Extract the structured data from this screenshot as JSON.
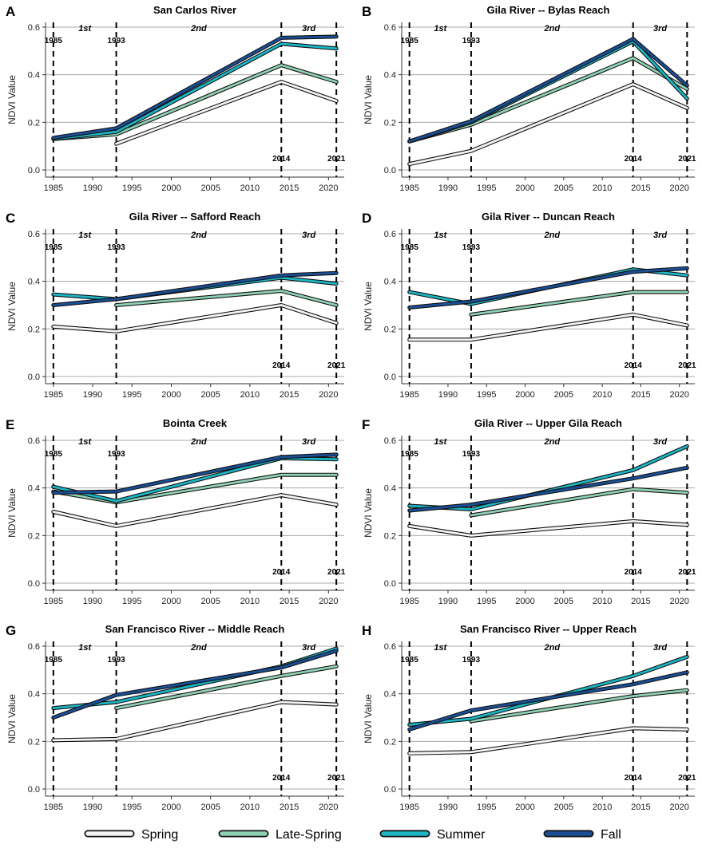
{
  "y_axis_label": "NDVI Value",
  "colors": {
    "Spring": "#f4f4f4",
    "Late-Spring": "#8fd1b4",
    "Summer": "#1cb5c4",
    "Fall": "#1a4f96"
  },
  "legend": [
    "Spring",
    "Late-Spring",
    "Summer",
    "Fall"
  ],
  "chart_data": [
    {
      "panel": "A",
      "title": "San Carlos River",
      "type": "line",
      "x_ticks": [
        1985,
        1990,
        1995,
        2000,
        2005,
        2010,
        2015,
        2020
      ],
      "y_ticks": [
        0.0,
        0.2,
        0.4,
        0.6
      ],
      "xlim": [
        1984,
        2022
      ],
      "ylim": [
        -0.03,
        0.62
      ],
      "markers": {
        "years": [
          1985,
          1993,
          2014,
          2021
        ],
        "top_labels": [
          "1985",
          "1993"
        ],
        "bottom_labels": [
          "2014",
          "2021"
        ],
        "eras": [
          "1st",
          "2nd",
          "3rd"
        ]
      },
      "series": [
        {
          "name": "Spring",
          "x": [
            1993,
            2014,
            2021
          ],
          "y": [
            0.11,
            0.37,
            0.29
          ]
        },
        {
          "name": "Late-Spring",
          "x": [
            1985,
            1993,
            2014,
            2021
          ],
          "y": [
            0.13,
            0.15,
            0.44,
            0.37
          ]
        },
        {
          "name": "Summer",
          "x": [
            1985,
            1993,
            2014,
            2021
          ],
          "y": [
            0.13,
            0.16,
            0.53,
            0.51
          ]
        },
        {
          "name": "Fall",
          "x": [
            1985,
            1993,
            2014,
            2021
          ],
          "y": [
            0.135,
            0.175,
            0.555,
            0.56
          ]
        }
      ]
    },
    {
      "panel": "B",
      "title": "Gila River -- Bylas Reach",
      "type": "line",
      "x_ticks": [
        1985,
        1990,
        1995,
        2000,
        2005,
        2010,
        2015,
        2020
      ],
      "y_ticks": [
        0.0,
        0.2,
        0.4,
        0.6
      ],
      "xlim": [
        1984,
        2022
      ],
      "ylim": [
        -0.03,
        0.62
      ],
      "markers": {
        "years": [
          1985,
          1993,
          2014,
          2021
        ],
        "top_labels": [
          "1985",
          "1993"
        ],
        "bottom_labels": [
          "2014",
          "2021"
        ],
        "eras": [
          "1st",
          "2nd",
          "3rd"
        ]
      },
      "series": [
        {
          "name": "Spring",
          "x": [
            1985,
            1993,
            2014,
            2021
          ],
          "y": [
            0.025,
            0.08,
            0.36,
            0.26
          ]
        },
        {
          "name": "Late-Spring",
          "x": [
            1985,
            1993,
            2014,
            2021
          ],
          "y": [
            0.12,
            0.19,
            0.47,
            0.34
          ]
        },
        {
          "name": "Summer",
          "x": [
            1985,
            1993,
            2014,
            2021
          ],
          "y": [
            0.12,
            0.2,
            0.54,
            0.3
          ]
        },
        {
          "name": "Fall",
          "x": [
            1985,
            1993,
            2014,
            2021
          ],
          "y": [
            0.12,
            0.205,
            0.55,
            0.355
          ]
        }
      ]
    },
    {
      "panel": "C",
      "title": "Gila River -- Safford Reach",
      "type": "line",
      "x_ticks": [
        1985,
        1990,
        1995,
        2000,
        2005,
        2010,
        2015,
        2020
      ],
      "y_ticks": [
        0.0,
        0.2,
        0.4,
        0.6
      ],
      "xlim": [
        1984,
        2022
      ],
      "ylim": [
        -0.03,
        0.62
      ],
      "markers": {
        "years": [
          1985,
          1993,
          2014,
          2021
        ],
        "top_labels": [
          "1985",
          "1993"
        ],
        "bottom_labels": [
          "2014",
          "2021"
        ],
        "eras": [
          "1st",
          "2nd",
          "3rd"
        ]
      },
      "series": [
        {
          "name": "Spring",
          "x": [
            1985,
            1993,
            2014,
            2021
          ],
          "y": [
            0.21,
            0.19,
            0.3,
            0.225
          ]
        },
        {
          "name": "Late-Spring",
          "x": [
            1993,
            2014,
            2021
          ],
          "y": [
            0.3,
            0.36,
            0.3
          ]
        },
        {
          "name": "Summer",
          "x": [
            1985,
            1993,
            2014,
            2021
          ],
          "y": [
            0.345,
            0.325,
            0.415,
            0.39
          ]
        },
        {
          "name": "Fall",
          "x": [
            1985,
            1993,
            2014,
            2021
          ],
          "y": [
            0.3,
            0.325,
            0.425,
            0.435
          ]
        }
      ]
    },
    {
      "panel": "D",
      "title": "Gila River -- Duncan Reach",
      "type": "line",
      "x_ticks": [
        1985,
        1990,
        1995,
        2000,
        2005,
        2010,
        2015,
        2020
      ],
      "y_ticks": [
        0.0,
        0.2,
        0.4,
        0.6
      ],
      "xlim": [
        1984,
        2022
      ],
      "ylim": [
        -0.03,
        0.62
      ],
      "markers": {
        "years": [
          1985,
          1993,
          2014,
          2021
        ],
        "top_labels": [
          "1985",
          "1993"
        ],
        "bottom_labels": [
          "2014",
          "2021"
        ],
        "eras": [
          "1st",
          "2nd",
          "3rd"
        ]
      },
      "series": [
        {
          "name": "Spring",
          "x": [
            1985,
            1993,
            2014,
            2021
          ],
          "y": [
            0.155,
            0.155,
            0.26,
            0.215
          ]
        },
        {
          "name": "Late-Spring",
          "x": [
            1993,
            2014,
            2021
          ],
          "y": [
            0.26,
            0.355,
            0.355
          ]
        },
        {
          "name": "Summer",
          "x": [
            1985,
            1993,
            2014,
            2021
          ],
          "y": [
            0.355,
            0.305,
            0.45,
            0.425
          ]
        },
        {
          "name": "Fall",
          "x": [
            1985,
            1993,
            2014,
            2021
          ],
          "y": [
            0.29,
            0.315,
            0.44,
            0.455
          ]
        }
      ]
    },
    {
      "panel": "E",
      "title": "Bointa Creek",
      "type": "line",
      "x_ticks": [
        1985,
        1990,
        1995,
        2000,
        2005,
        2010,
        2015,
        2020
      ],
      "y_ticks": [
        0.0,
        0.2,
        0.4,
        0.6
      ],
      "xlim": [
        1984,
        2022
      ],
      "ylim": [
        -0.03,
        0.62
      ],
      "markers": {
        "years": [
          1985,
          1993,
          2014,
          2021
        ],
        "top_labels": [
          "1985",
          "1993"
        ],
        "bottom_labels": [
          "2014",
          "2021"
        ],
        "eras": [
          "1st",
          "2nd",
          "3rd"
        ]
      },
      "series": [
        {
          "name": "Spring",
          "x": [
            1985,
            1993,
            2014,
            2021
          ],
          "y": [
            0.3,
            0.24,
            0.37,
            0.33
          ]
        },
        {
          "name": "Late-Spring",
          "x": [
            1985,
            1993,
            2014,
            2021
          ],
          "y": [
            0.385,
            0.34,
            0.455,
            0.455
          ]
        },
        {
          "name": "Summer",
          "x": [
            1985,
            1993,
            2014,
            2021
          ],
          "y": [
            0.405,
            0.345,
            0.525,
            0.52
          ]
        },
        {
          "name": "Fall",
          "x": [
            1985,
            1993,
            2014,
            2021
          ],
          "y": [
            0.38,
            0.385,
            0.53,
            0.54
          ]
        }
      ]
    },
    {
      "panel": "F",
      "title": "Gila River -- Upper Gila Reach",
      "type": "line",
      "x_ticks": [
        1985,
        1990,
        1995,
        2000,
        2005,
        2010,
        2015,
        2020
      ],
      "y_ticks": [
        0.0,
        0.2,
        0.4,
        0.6
      ],
      "xlim": [
        1984,
        2022
      ],
      "ylim": [
        -0.03,
        0.62
      ],
      "markers": {
        "years": [
          1985,
          1993,
          2014,
          2021
        ],
        "top_labels": [
          "1985",
          "1993"
        ],
        "bottom_labels": [
          "2014",
          "2021"
        ],
        "eras": [
          "1st",
          "2nd",
          "3rd"
        ]
      },
      "series": [
        {
          "name": "Spring",
          "x": [
            1985,
            1993,
            2014,
            2021
          ],
          "y": [
            0.24,
            0.2,
            0.26,
            0.245
          ]
        },
        {
          "name": "Late-Spring",
          "x": [
            1993,
            2014,
            2021
          ],
          "y": [
            0.285,
            0.395,
            0.38
          ]
        },
        {
          "name": "Summer",
          "x": [
            1985,
            1993,
            2014,
            2021
          ],
          "y": [
            0.325,
            0.31,
            0.475,
            0.575
          ]
        },
        {
          "name": "Fall",
          "x": [
            1985,
            1993,
            2014,
            2021
          ],
          "y": [
            0.305,
            0.33,
            0.44,
            0.485
          ]
        }
      ]
    },
    {
      "panel": "G",
      "title": "San Francisco River -- Middle Reach",
      "type": "line",
      "x_ticks": [
        1985,
        1990,
        1995,
        2000,
        2005,
        2010,
        2015,
        2020
      ],
      "y_ticks": [
        0.0,
        0.2,
        0.4,
        0.6
      ],
      "xlim": [
        1984,
        2022
      ],
      "ylim": [
        -0.03,
        0.62
      ],
      "markers": {
        "years": [
          1985,
          1993,
          2014,
          2021
        ],
        "top_labels": [
          "1985",
          "1993"
        ],
        "bottom_labels": [
          "2014",
          "2021"
        ],
        "eras": [
          "1st",
          "2nd",
          "3rd"
        ]
      },
      "series": [
        {
          "name": "Spring",
          "x": [
            1985,
            1993,
            2014,
            2021
          ],
          "y": [
            0.205,
            0.21,
            0.365,
            0.355
          ]
        },
        {
          "name": "Late-Spring",
          "x": [
            1993,
            2014,
            2021
          ],
          "y": [
            0.34,
            0.475,
            0.515
          ]
        },
        {
          "name": "Summer",
          "x": [
            1985,
            1993,
            2014,
            2021
          ],
          "y": [
            0.34,
            0.365,
            0.515,
            0.59
          ]
        },
        {
          "name": "Fall",
          "x": [
            1985,
            1993,
            2014,
            2021
          ],
          "y": [
            0.3,
            0.395,
            0.51,
            0.58
          ]
        }
      ]
    },
    {
      "panel": "H",
      "title": "San Francisco River -- Upper Reach",
      "type": "line",
      "x_ticks": [
        1985,
        1990,
        1995,
        2000,
        2005,
        2010,
        2015,
        2020
      ],
      "y_ticks": [
        0.0,
        0.2,
        0.4,
        0.6
      ],
      "xlim": [
        1984,
        2022
      ],
      "ylim": [
        -0.03,
        0.62
      ],
      "markers": {
        "years": [
          1985,
          1993,
          2014,
          2021
        ],
        "top_labels": [
          "1985",
          "1993"
        ],
        "bottom_labels": [
          "2014",
          "2021"
        ],
        "eras": [
          "1st",
          "2nd",
          "3rd"
        ]
      },
      "series": [
        {
          "name": "Spring",
          "x": [
            1985,
            1993,
            2014,
            2021
          ],
          "y": [
            0.15,
            0.155,
            0.255,
            0.25
          ]
        },
        {
          "name": "Late-Spring",
          "x": [
            1993,
            2014,
            2021
          ],
          "y": [
            0.285,
            0.39,
            0.415
          ]
        },
        {
          "name": "Summer",
          "x": [
            1985,
            1993,
            2014,
            2021
          ],
          "y": [
            0.27,
            0.295,
            0.475,
            0.555
          ]
        },
        {
          "name": "Fall",
          "x": [
            1985,
            1993,
            2014,
            2021
          ],
          "y": [
            0.25,
            0.33,
            0.44,
            0.49
          ]
        }
      ]
    }
  ]
}
